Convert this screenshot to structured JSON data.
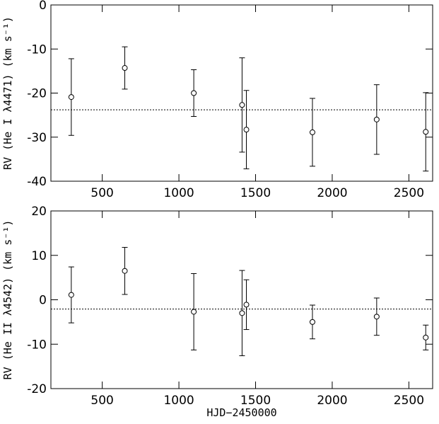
{
  "chart_data": [
    {
      "type": "scatter",
      "ylabel": "RV (He I λ4471) (km s⁻¹)",
      "xlim": [
        165,
        2655
      ],
      "xticks": [
        500,
        1000,
        1500,
        2000,
        2500
      ],
      "ylim": [
        -40,
        0
      ],
      "yticks": [
        -40,
        -30,
        -20,
        -10,
        0
      ],
      "hline": -23.8,
      "color": "#000000",
      "series": [
        {
          "x": [
            298,
            647,
            1097,
            1412,
            1440,
            1871,
            2290,
            2610
          ],
          "values": [
            -20.9,
            -14.3,
            -20.0,
            -22.7,
            -28.3,
            -28.9,
            -26.0,
            -28.8
          ],
          "errors": [
            8.7,
            4.8,
            5.3,
            10.7,
            8.9,
            7.7,
            7.9,
            8.9
          ]
        }
      ]
    },
    {
      "type": "scatter",
      "ylabel": "RV (He II λ4542) (km s⁻¹)",
      "xlabel": "HJD−2450000",
      "xlim": [
        165,
        2655
      ],
      "xticks": [
        500,
        1000,
        1500,
        2000,
        2500
      ],
      "ylim": [
        -20,
        20
      ],
      "yticks": [
        -20,
        -10,
        0,
        10,
        20
      ],
      "hline": -2.1,
      "color": "#000000",
      "series": [
        {
          "x": [
            298,
            647,
            1097,
            1412,
            1440,
            1871,
            2290,
            2610
          ],
          "values": [
            1.1,
            6.5,
            -2.7,
            -3.0,
            -1.1,
            -5.0,
            -3.8,
            -8.5
          ],
          "errors": [
            6.3,
            5.3,
            8.6,
            9.6,
            5.6,
            3.8,
            4.2,
            2.8
          ]
        }
      ]
    }
  ]
}
